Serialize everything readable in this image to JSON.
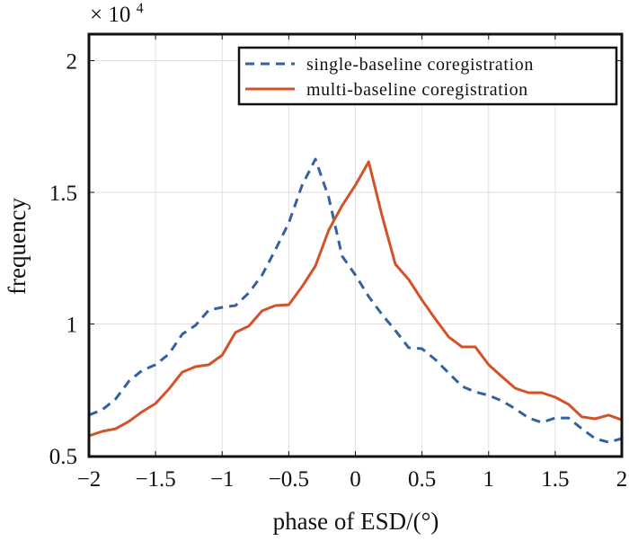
{
  "chart_data": {
    "type": "line",
    "title": "",
    "xlabel": "phase of ESD/(°)",
    "ylabel": "frequency",
    "y_multiplier_label": "× 10",
    "y_multiplier_exponent": "4",
    "xlim": [
      -2,
      2
    ],
    "ylim": [
      0.5,
      2.1
    ],
    "grid": true,
    "legend_position": "top-right",
    "x_ticks": [
      -2,
      -1.5,
      -1,
      -0.5,
      0,
      0.5,
      1,
      1.5,
      2
    ],
    "x_tick_labels": [
      "−2",
      "−1.5",
      "−1",
      "−0.5",
      "0",
      "0.5",
      "1",
      "1.5",
      "2"
    ],
    "y_ticks": [
      0.5,
      1,
      1.5,
      2
    ],
    "y_tick_labels": [
      "0.5",
      "1",
      "1.5",
      "2"
    ],
    "x": [
      -2,
      -1.9,
      -1.8,
      -1.7,
      -1.6,
      -1.5,
      -1.4,
      -1.3,
      -1.2,
      -1.1,
      -1.0,
      -0.9,
      -0.8,
      -0.7,
      -0.6,
      -0.5,
      -0.4,
      -0.3,
      -0.2,
      -0.1,
      0,
      0.1,
      0.2,
      0.3,
      0.4,
      0.5,
      0.6,
      0.7,
      0.8,
      0.9,
      1.0,
      1.1,
      1.2,
      1.3,
      1.4,
      1.5,
      1.6,
      1.7,
      1.8,
      1.9,
      2.0
    ],
    "series": [
      {
        "name": "single-baseline coregistration",
        "color": "#3461a0",
        "style": "dashed",
        "values": [
          0.654,
          0.674,
          0.715,
          0.783,
          0.824,
          0.845,
          0.886,
          0.961,
          0.995,
          1.053,
          1.063,
          1.07,
          1.118,
          1.186,
          1.282,
          1.384,
          1.527,
          1.626,
          1.48,
          1.258,
          1.186,
          1.104,
          1.036,
          0.975,
          0.91,
          0.906,
          0.865,
          0.814,
          0.763,
          0.742,
          0.729,
          0.708,
          0.678,
          0.643,
          0.626,
          0.643,
          0.643,
          0.602,
          0.565,
          0.551,
          0.565
        ]
      },
      {
        "name": "multi-baseline coregistration",
        "color": "#d4522a",
        "style": "solid",
        "values": [
          0.575,
          0.592,
          0.602,
          0.63,
          0.667,
          0.698,
          0.753,
          0.817,
          0.838,
          0.845,
          0.882,
          0.968,
          0.992,
          1.05,
          1.07,
          1.073,
          1.142,
          1.22,
          1.357,
          1.449,
          1.527,
          1.616,
          1.411,
          1.227,
          1.169,
          1.091,
          1.019,
          0.951,
          0.913,
          0.913,
          0.845,
          0.8,
          0.756,
          0.739,
          0.739,
          0.722,
          0.695,
          0.647,
          0.64,
          0.654,
          0.636
        ]
      }
    ]
  }
}
